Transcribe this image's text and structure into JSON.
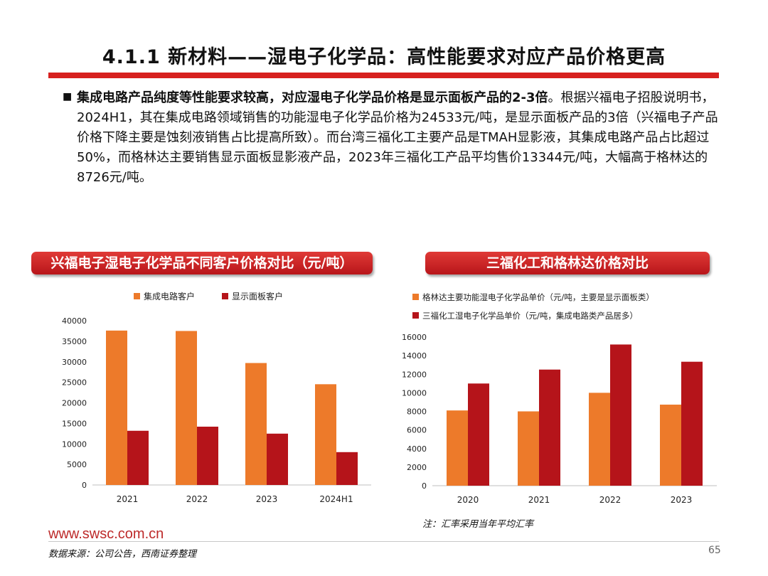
{
  "slide": {
    "title": "4.1.1 新材料——湿电子化学品：高性能要求对应产品价格更高",
    "bullet_symbol": "■",
    "paragraph_lead": "集成电路产品纯度等性能要求较高，对应湿电子化学品价格是显示面板产品的2-3倍",
    "paragraph_body": "。根据兴福电子招股说明书，2024H1，其在集成电路领域销售的功能湿电子化学品价格为24533元/吨，是显示面板产品的3倍（兴福电子产品价格下降主要是蚀刻液销售占比提高所致）。而台湾三福化工主要产品是TMAH显影液，其集成电路产品占比超过50%，而格林达主要销售显示面板显影液产品，2023年三福化工产品平均售价13344元/吨，大幅高于格林达的8726元/吨。",
    "note": "注：汇率采用当年平均汇率",
    "website": "www.swsc.com.cn",
    "source": "数据来源：公司公告，西南证券整理",
    "page_number": "65"
  },
  "colors": {
    "accent_red": "#d7211f",
    "series_orange": "#ed7a2a",
    "series_darkred": "#b5141a"
  },
  "chart_data": [
    {
      "type": "bar",
      "badge": "兴福电子湿电子化学品不同客户价格对比（元/吨）",
      "title": "",
      "categories": [
        "2021",
        "2022",
        "2023",
        "2024H1"
      ],
      "series": [
        {
          "name": "集成电路客户",
          "values": [
            37600,
            37500,
            29700,
            24533
          ]
        },
        {
          "name": "显示面板客户",
          "values": [
            13200,
            14200,
            12500,
            8000
          ]
        }
      ],
      "ylim": [
        0,
        40000
      ],
      "yticks": [
        0,
        5000,
        10000,
        15000,
        20000,
        25000,
        30000,
        35000,
        40000
      ],
      "legend": "top"
    },
    {
      "type": "bar",
      "badge": "三福化工和格林达价格对比",
      "title": "",
      "categories": [
        "2020",
        "2021",
        "2022",
        "2023"
      ],
      "series": [
        {
          "name": "格林达主要功能湿电子化学品单价（元/吨，主要是显示面板类）",
          "values": [
            8100,
            8000,
            10000,
            8726
          ]
        },
        {
          "name": "三福化工湿电子化学品单价（元/吨，集成电路类产品居多）",
          "values": [
            11000,
            12500,
            15200,
            13344
          ]
        }
      ],
      "ylim": [
        0,
        16000
      ],
      "yticks": [
        0,
        2000,
        4000,
        6000,
        8000,
        10000,
        12000,
        14000,
        16000
      ],
      "legend": "top"
    }
  ]
}
